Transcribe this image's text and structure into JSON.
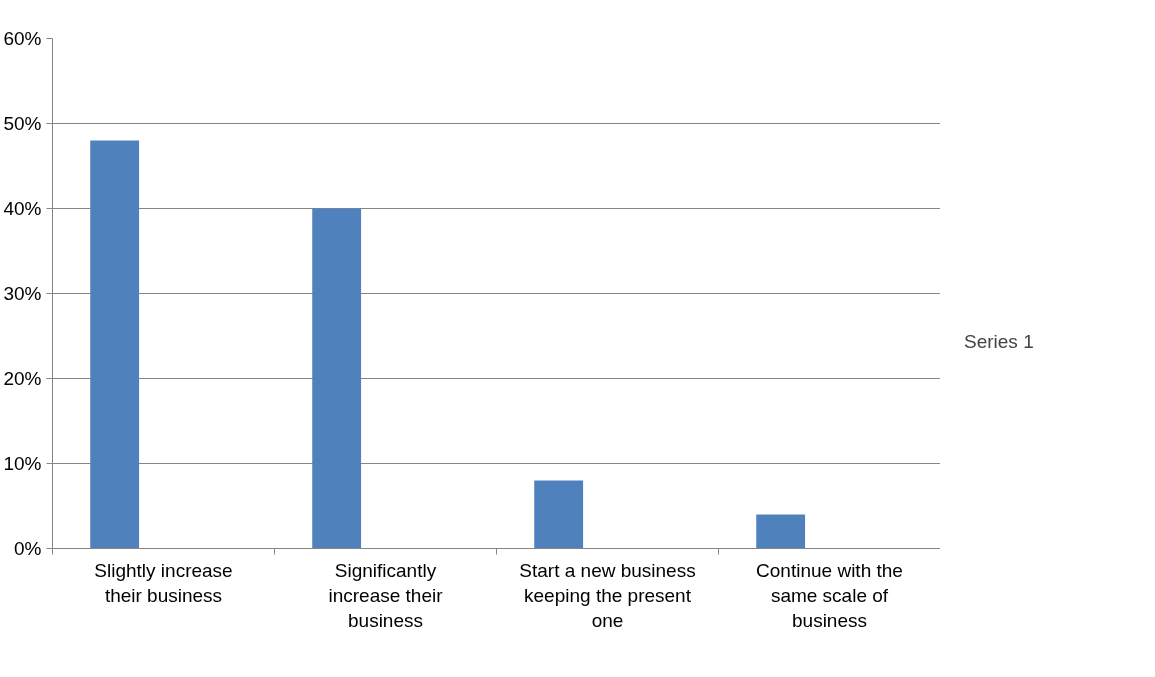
{
  "chart_data": {
    "type": "bar",
    "categories": [
      "Slightly increase their business",
      "Significantly increase their business",
      "Start a new business keeping the present one",
      "Continue with the same scale of business"
    ],
    "series": [
      {
        "name": "Series 1",
        "color": "#4f81bd",
        "values": [
          48,
          40,
          8,
          4
        ]
      }
    ],
    "ylim": [
      0,
      60
    ],
    "yticks": [
      {
        "value": 0,
        "label": "0%"
      },
      {
        "value": 10,
        "label": "10%"
      },
      {
        "value": 20,
        "label": "20%"
      },
      {
        "value": 30,
        "label": "30%"
      },
      {
        "value": 40,
        "label": "40%"
      },
      {
        "value": 50,
        "label": "50%"
      },
      {
        "value": 60,
        "label": "60%"
      }
    ],
    "grid": "y",
    "legend": "right"
  }
}
